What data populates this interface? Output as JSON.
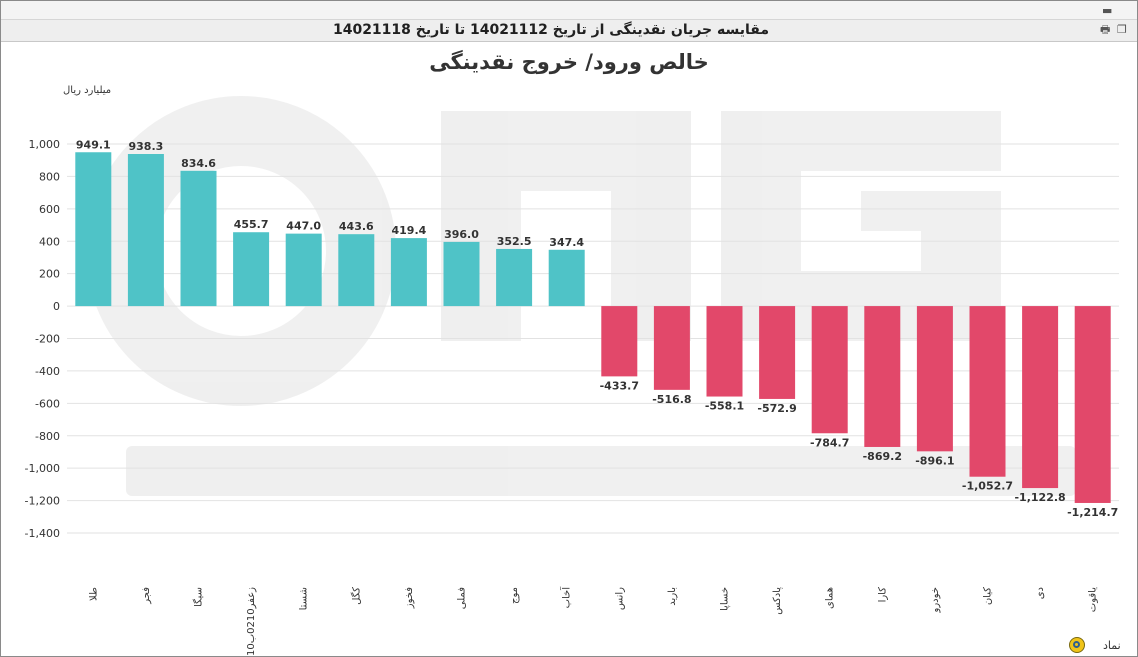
{
  "window": {
    "title": "مقایسه جریان نقدینگی از تاریخ 14021112 تا تاریخ 14021118",
    "icons": [
      "window-minimize-icon",
      "printer-icon",
      "window-restore-icon"
    ]
  },
  "chart_data": {
    "type": "bar",
    "title": "خالص ورود/ خروج نقدینگی",
    "ylabel": "میلیارد ریال",
    "xlabel": "نماد",
    "ylim": [
      -1400,
      1000
    ],
    "yticks": [
      "1,000",
      "800",
      "600",
      "400",
      "200",
      "0",
      "-200",
      "-400",
      "-600",
      "-800",
      "-1,000",
      "-1,200",
      "-1,400"
    ],
    "ytick_values": [
      1000,
      800,
      600,
      400,
      200,
      0,
      -200,
      -400,
      -600,
      -800,
      -1000,
      -1200,
      -1400
    ],
    "grid": true,
    "colors": {
      "positive": "#4fc3c7",
      "negative": "#e2486a"
    },
    "categories": [
      "طلا",
      "فجر",
      "سیگا",
      "زعفر0210ب10",
      "شستا",
      "کگل",
      "فخوز",
      "فملی",
      "موج",
      "آخاب",
      "رانس",
      "بارید",
      "خساپا",
      "پادکس",
      "همای",
      "کارا",
      "خودرو",
      "کیان",
      "دی",
      "یاقوت"
    ],
    "values": [
      949.1,
      938.3,
      834.6,
      455.7,
      447.0,
      443.6,
      419.4,
      396.0,
      352.5,
      347.4,
      -433.7,
      -516.8,
      -558.1,
      -572.9,
      -784.7,
      -869.2,
      -896.1,
      -1052.7,
      -1122.8,
      -1214.7
    ],
    "labels": [
      "949.1",
      "938.3",
      "834.6",
      "455.7",
      "447.0",
      "443.6",
      "419.4",
      "396.0",
      "352.5",
      "347.4",
      "-433.7",
      "-516.8",
      "-558.1",
      "-572.9",
      "-784.7",
      "-869.2",
      "-896.1",
      "-1,052.7",
      "-1,122.8",
      "-1,214.7"
    ]
  }
}
